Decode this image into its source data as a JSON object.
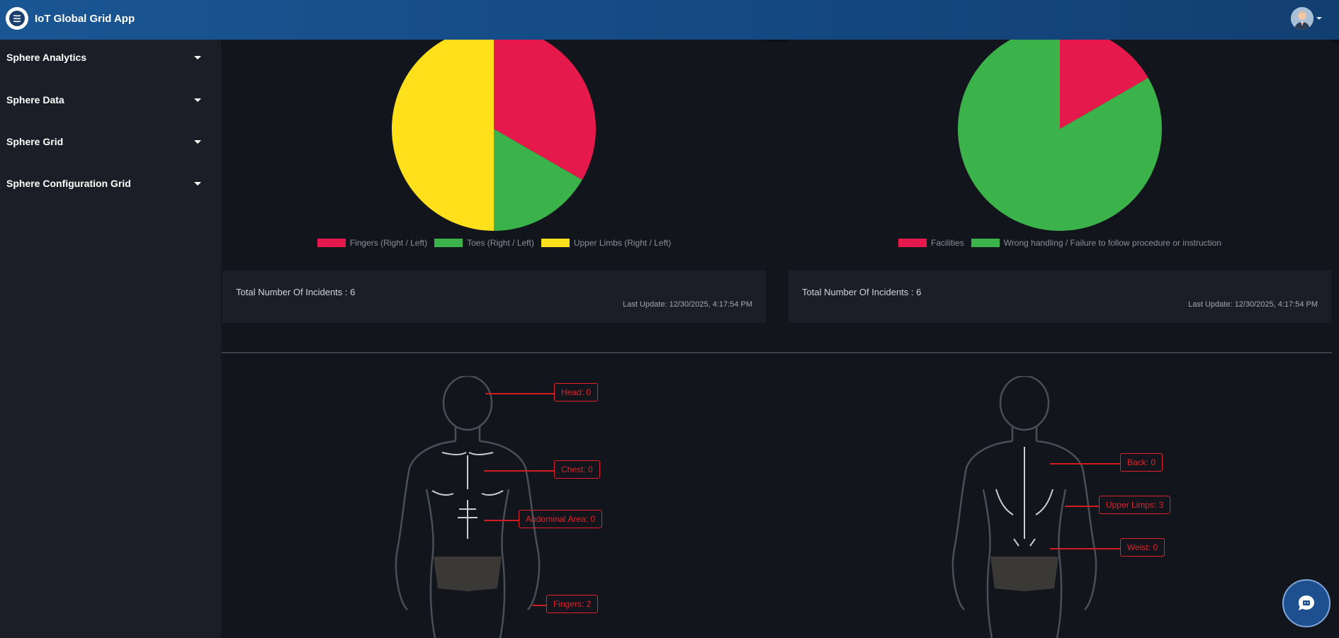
{
  "app": {
    "title": "IoT Global Grid App"
  },
  "icons": {
    "logo": "brand-logo-icon",
    "avatar": "user-avatar-icon",
    "chat": "chat-bubble-icon"
  },
  "sidebar": {
    "items": [
      {
        "label": "Sphere Analytics"
      },
      {
        "label": "Sphere Data"
      },
      {
        "label": "Sphere Grid"
      },
      {
        "label": "Sphere Configuration Grid"
      }
    ]
  },
  "panels": [
    {
      "total_label": "Total Number Of Incidents : 6",
      "last_update": "Last Update: 12/30/2025, 4:17:54 PM"
    },
    {
      "total_label": "Total Number Of Incidents : 6",
      "last_update": "Last Update: 12/30/2025, 4:17:54 PM"
    }
  ],
  "chart_data": [
    {
      "type": "pie",
      "categories": [
        "Fingers (Right / Left)",
        "Toes (Right / Left)",
        "Upper Limbs (Right / Left)"
      ],
      "values": [
        2,
        1,
        3
      ],
      "colors": [
        "#e5194b",
        "#3bb34a",
        "#ffe01b"
      ],
      "legend": "bottom"
    },
    {
      "type": "pie",
      "categories": [
        "Facilities",
        "Wrong handling / Failure to follow procedure or instruction"
      ],
      "values": [
        1,
        5
      ],
      "colors": [
        "#e5194b",
        "#3bb34a"
      ],
      "legend": "bottom"
    }
  ],
  "body_front": {
    "labels": [
      {
        "text": "Head: 0"
      },
      {
        "text": "Chest: 0"
      },
      {
        "text": "Abdominal Area: 0"
      },
      {
        "text": "Fingers: 2"
      }
    ]
  },
  "body_back": {
    "labels": [
      {
        "text": "Back: 0"
      },
      {
        "text": "Upper Limps: 3"
      },
      {
        "text": "Weist: 0"
      }
    ]
  }
}
